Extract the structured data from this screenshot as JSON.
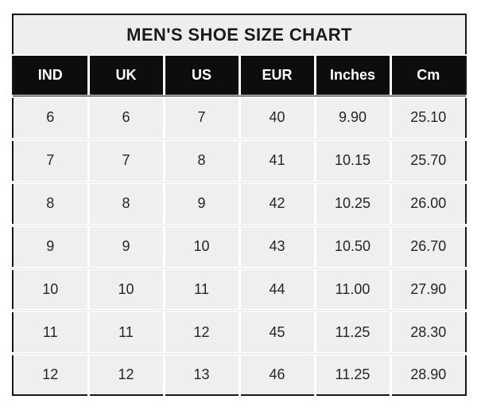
{
  "chart_data": {
    "type": "table",
    "title": "MEN'S SHOE SIZE CHART",
    "columns": [
      "IND",
      "UK",
      "US",
      "EUR",
      "Inches",
      "Cm"
    ],
    "rows": [
      [
        "6",
        "6",
        "7",
        "40",
        "9.90",
        "25.10"
      ],
      [
        "7",
        "7",
        "8",
        "41",
        "10.15",
        "25.70"
      ],
      [
        "8",
        "8",
        "9",
        "42",
        "10.25",
        "26.00"
      ],
      [
        "9",
        "9",
        "10",
        "43",
        "10.50",
        "26.70"
      ],
      [
        "10",
        "10",
        "11",
        "44",
        "11.00",
        "27.90"
      ],
      [
        "11",
        "11",
        "12",
        "45",
        "11.25",
        "28.30"
      ],
      [
        "12",
        "12",
        "13",
        "46",
        "11.25",
        "28.90"
      ]
    ]
  },
  "colors": {
    "header_bg": "#0d0d0d",
    "header_text": "#ffffff",
    "title_bg": "#eeeeee",
    "cell_bg": "#efefef",
    "separator": "#ffffff",
    "outer_border": "#161616",
    "body_text": "#262626",
    "title_text": "#1b1b1b",
    "page_bg": "#ffffff"
  }
}
